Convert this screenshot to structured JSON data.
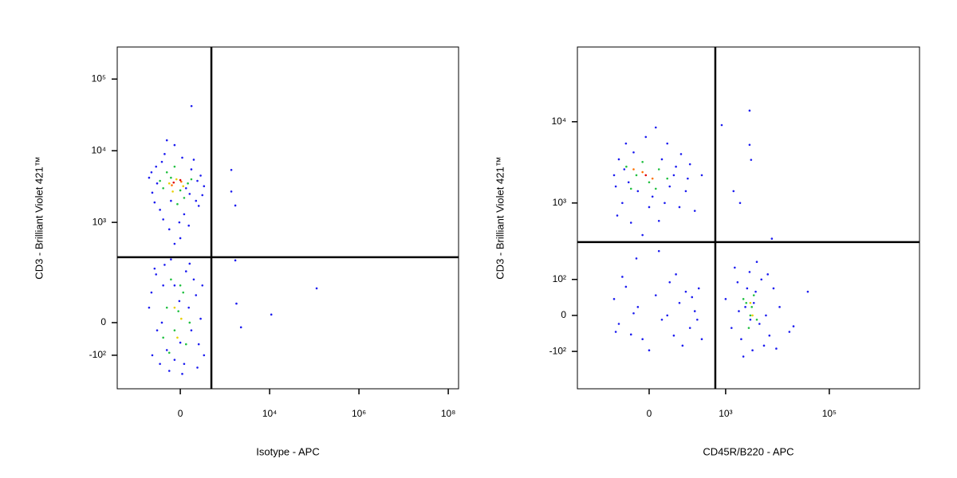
{
  "chart_data": [
    {
      "type": "scatter",
      "x_label": "Isotype - APC",
      "y_label": "CD3 - Brilliant Violet 421™",
      "xscale": {
        "type": "biexponential",
        "cofactor": 200
      },
      "yscale": {
        "type": "biexponential",
        "cofactor": 80
      },
      "xlim": [
        -2580,
        170000000
      ],
      "ylim": [
        -330,
        280000
      ],
      "xticks": [
        0,
        {
          "value": 10000,
          "label": "10⁴"
        },
        {
          "value": 1000000,
          "label": "10⁶"
        },
        {
          "value": 100000000,
          "label": "10⁸"
        }
      ],
      "yticks": [
        {
          "value": -100,
          "label": "-10²"
        },
        0,
        {
          "value": 1000,
          "label": "10³"
        },
        {
          "value": 10000,
          "label": "10⁴"
        },
        {
          "value": 100000,
          "label": "10⁵"
        }
      ],
      "gates": {
        "x": 476,
        "y": 322
      },
      "series": [
        {
          "color": "#1c1cf0",
          "x": [
            -480,
            -400,
            -320,
            -250,
            -180,
            -120,
            -60,
            0,
            60,
            120,
            180,
            250,
            310,
            -300,
            -200,
            -100,
            40,
            150,
            220,
            -420,
            -150,
            90,
            280,
            -350,
            20,
            -220,
            200,
            -60,
            100,
            -10,
            -480,
            -400,
            -320,
            -250,
            -180,
            -120,
            -60,
            0,
            60,
            120,
            180,
            250,
            310,
            -300,
            -200,
            -100,
            40,
            150,
            220,
            -420,
            -150,
            90,
            280,
            -350,
            20,
            -220,
            200,
            -60,
            100,
            -10,
            122,
            1380,
            1700,
            1380,
            113000,
            10900,
            2280,
            1800,
            1700
          ],
          "y": [
            4200,
            2600,
            6000,
            1500,
            9000,
            800,
            12000,
            600,
            3000,
            5500,
            2000,
            4500,
            3200,
            3500,
            1100,
            2000,
            1300,
            7500,
            1700,
            5000,
            14000,
            900,
            2400,
            1900,
            8000,
            7000,
            3800,
            500,
            2500,
            1000,
            40,
            -100,
            180,
            -140,
            250,
            -180,
            120,
            -55,
            200,
            -20,
            80,
            10,
            -100,
            -20,
            120,
            300,
            -140,
            150,
            -60,
            90,
            -80,
            40,
            120,
            220,
            -200,
            0,
            -160,
            -120,
            260,
            60,
            42000,
            5400,
            1720,
            2700,
            107,
            21,
            -12,
            52,
            290
          ]
        },
        {
          "color": "#20c040",
          "x": [
            -200,
            -100,
            0,
            80,
            -150,
            40,
            -60,
            -250,
            120,
            -30,
            -150,
            -60,
            30,
            -100,
            60,
            -20,
            100,
            -200,
            0,
            -120
          ],
          "y": [
            3000,
            4200,
            2800,
            3500,
            5000,
            2200,
            6000,
            3800,
            4000,
            1800,
            40,
            -20,
            90,
            150,
            -60,
            30,
            0,
            -40,
            120,
            -90
          ]
        },
        {
          "color": "#e8d000",
          "x": [
            -120,
            -40,
            30,
            -80,
            -60,
            10,
            -30
          ],
          "y": [
            3500,
            4000,
            3200,
            2700,
            40,
            10,
            -40
          ]
        },
        {
          "color": "#ff7000",
          "x": [
            -90,
            10
          ],
          "y": [
            3300,
            3700
          ]
        },
        {
          "color": "#e00000",
          "x": [
            -70,
            0
          ],
          "y": [
            3600,
            3900
          ]
        }
      ]
    },
    {
      "type": "scatter",
      "x_label": "CD45R/B220 - APC",
      "y_label": "CD3 - Brilliant Violet 421™",
      "xscale": {
        "type": "biexponential",
        "cofactor": 67
      },
      "yscale": {
        "type": "biexponential",
        "cofactor": 83
      },
      "xlim": [
        -810,
        5500000
      ],
      "ylim": [
        -326,
        83000
      ],
      "xticks": [
        0,
        {
          "value": 1000,
          "label": "10³"
        },
        {
          "value": 100000,
          "label": "10⁵"
        }
      ],
      "yticks": [
        {
          "value": -100,
          "label": "-10²"
        },
        0,
        {
          "value": 100,
          "label": "10²"
        },
        {
          "value": 1000,
          "label": "10³"
        },
        {
          "value": 10000,
          "label": "10⁴"
        }
      ],
      "gates": {
        "x": 631,
        "y": 326
      },
      "series": [
        {
          "color": "#1c1cf0",
          "x": [
            -152,
            -82,
            -35,
            0,
            40,
            89,
            164,
            344,
            -120,
            -60,
            20,
            120,
            -100,
            60,
            -20,
            200,
            -140,
            -50,
            10,
            70,
            130,
            250,
            -90,
            30,
            -10,
            100,
            -130,
            50,
            180,
            -70,
            -152,
            -120,
            -82,
            -60,
            -35,
            0,
            20,
            40,
            70,
            89,
            120,
            164,
            200,
            250,
            300,
            344,
            -100,
            -20,
            60,
            140,
            -140,
            100,
            220,
            -50,
            280,
            1000,
            1300,
            1700,
            2000,
            2400,
            2900,
            3300,
            3800,
            4500,
            4900,
            6000,
            7000,
            8400,
            11000,
            17000,
            1500,
            2200,
            3000,
            4000,
            5500,
            2600,
            3500,
            1800,
            6500,
            9500,
            840,
            2900,
            2900,
            3100,
            1420,
            1900,
            38500,
            20400,
            7800,
            -40,
            30
          ],
          "y": [
            2200,
            5400,
            1400,
            890,
            3450,
            2200,
            1400,
            2200,
            3450,
            570,
            8500,
            890,
            1000,
            5400,
            400,
            3000,
            1600,
            4200,
            1200,
            1600,
            4000,
            800,
            2600,
            600,
            6500,
            2800,
            700,
            1000,
            2000,
            1800,
            40,
            -20,
            75,
            -47,
            20,
            -96,
            50,
            -10,
            90,
            -50,
            30,
            60,
            -30,
            10,
            70,
            -60,
            110,
            -60,
            0,
            -80,
            -40,
            120,
            45,
            5,
            -10,
            40,
            -30,
            90,
            -60,
            20,
            130,
            -96,
            60,
            -20,
            100,
            0,
            -50,
            70,
            20,
            -40,
            150,
            -120,
            -10,
            180,
            -80,
            70,
            30,
            10,
            120,
            -90,
            9100,
            13700,
            5200,
            3400,
            1400,
            1000,
            60,
            -26,
            360,
            200,
            250
          ]
        },
        {
          "color": "#20c040",
          "x": [
            -40,
            0,
            30,
            -80,
            60,
            -20,
            20,
            -60,
            2500,
            3000,
            3500,
            2800,
            3200,
            4000,
            2200
          ],
          "y": [
            2200,
            1800,
            2600,
            2800,
            2000,
            3200,
            1500,
            1500,
            30,
            0,
            50,
            -30,
            20,
            -10,
            40
          ]
        },
        {
          "color": "#e8d000",
          "x": [
            3000,
            3300
          ],
          "y": [
            30,
            0
          ]
        },
        {
          "color": "#ff7000",
          "x": [
            -20,
            10,
            -50
          ],
          "y": [
            2400,
            2000,
            2600
          ]
        },
        {
          "color": "#e00000",
          "x": [
            -10
          ],
          "y": [
            2200
          ]
        }
      ]
    }
  ]
}
